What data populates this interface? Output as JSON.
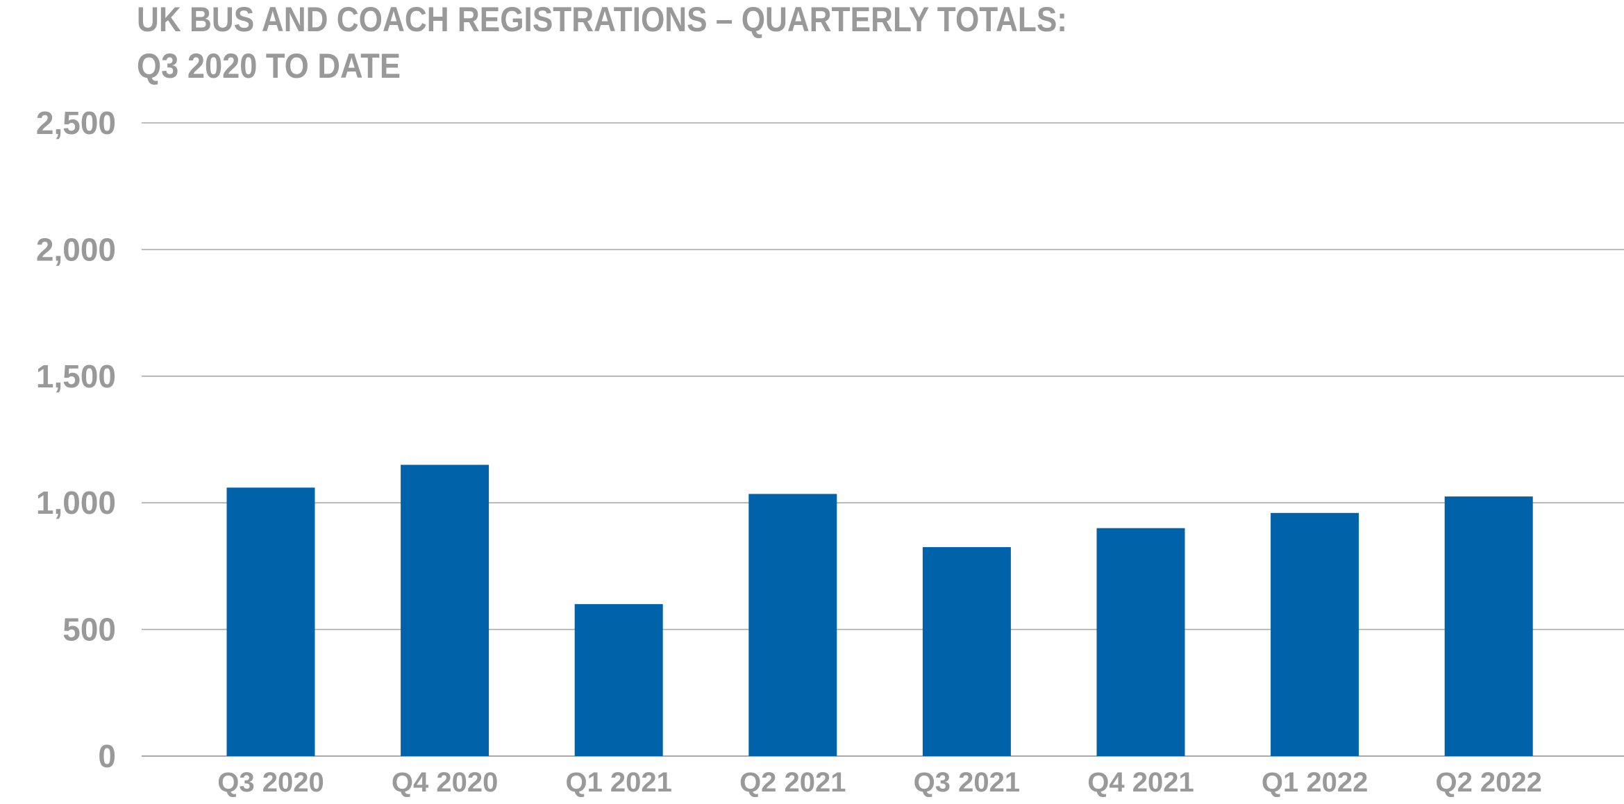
{
  "chart_data": {
    "type": "bar",
    "title": [
      "UK BUS AND COACH REGISTRATIONS – QUARTERLY TOTALS:",
      "Q3 2020 TO DATE"
    ],
    "categories": [
      "Q3 2020",
      "Q4 2020",
      "Q1 2021",
      "Q2 2021",
      "Q3 2021",
      "Q4 2021",
      "Q1 2022",
      "Q2 2022"
    ],
    "values": [
      1060,
      1150,
      600,
      1035,
      825,
      900,
      960,
      1025
    ],
    "ylim": [
      0,
      2500
    ],
    "yticks": [
      0,
      500,
      1000,
      1500,
      2000,
      2500
    ],
    "ytick_labels": [
      "0",
      "500",
      "1,000",
      "1,500",
      "2,000",
      "2,500"
    ],
    "grid": true,
    "colors": {
      "bar": "#0063a9",
      "text": "#999999",
      "grid": "#a9a9a9"
    }
  }
}
